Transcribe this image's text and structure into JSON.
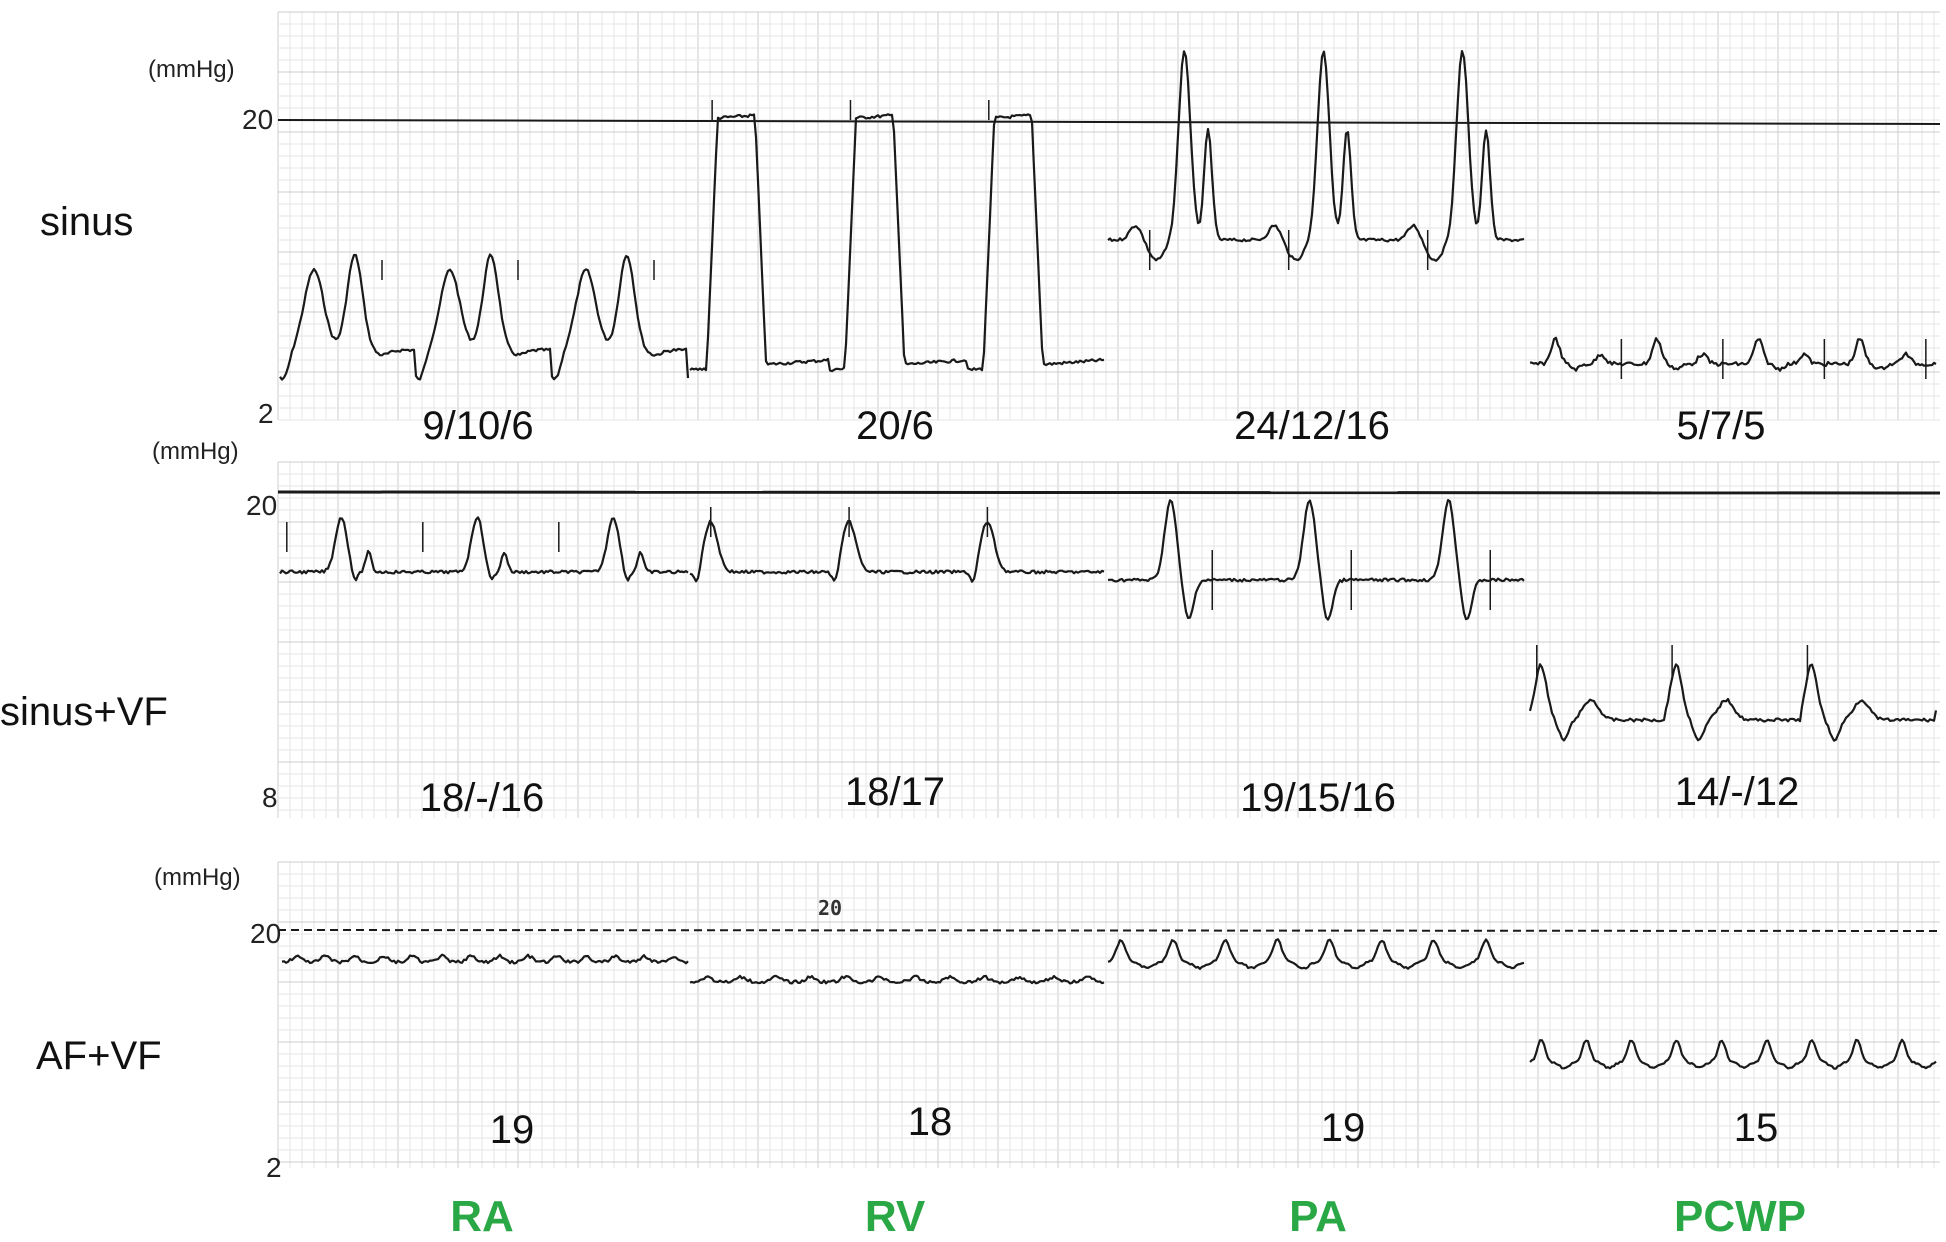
{
  "figure": {
    "colors": {
      "trace": "#1a1a1a",
      "grid_minor": "#e6e6e6",
      "grid_major": "#cccccc",
      "chamber_label": "#2aa845"
    },
    "chambers": [
      "RA",
      "RV",
      "PA",
      "PCWP"
    ]
  },
  "chart_data": [
    {
      "type": "line",
      "row_label": "sinus",
      "unit": "(mmHg)",
      "ytick_top": "20",
      "ytick_bottom": "2",
      "ylim": [
        2,
        20
      ],
      "reference_line": 20,
      "reference_style": "solid",
      "grid": true,
      "panels": [
        {
          "chamber": "RA",
          "value_label": "9/10/6"
        },
        {
          "chamber": "RV",
          "value_label": "20/6"
        },
        {
          "chamber": "PA",
          "value_label": "24/12/16"
        },
        {
          "chamber": "PCWP",
          "value_label": "5/7/5"
        }
      ]
    },
    {
      "type": "line",
      "row_label": "sinus+VF",
      "unit": "(mmHg)",
      "ytick_top": "20",
      "ytick_bottom": "8",
      "ylim": [
        8,
        20
      ],
      "reference_line": 20,
      "reference_style": "solid",
      "grid": true,
      "panels": [
        {
          "chamber": "RA",
          "value_label": "18/-/16"
        },
        {
          "chamber": "RV",
          "value_label": "18/17"
        },
        {
          "chamber": "PA",
          "value_label": "19/15/16"
        },
        {
          "chamber": "PCWP",
          "value_label": "14/-/12"
        }
      ]
    },
    {
      "type": "line",
      "row_label": "AF+VF",
      "unit": "(mmHg)",
      "ytick_top": "20",
      "ytick_bottom": "2",
      "inline_label": "20",
      "ylim": [
        2,
        20
      ],
      "reference_line": 20,
      "reference_style": "dashed",
      "grid": true,
      "panels": [
        {
          "chamber": "RA",
          "value_label": "19"
        },
        {
          "chamber": "RV",
          "value_label": "18"
        },
        {
          "chamber": "PA",
          "value_label": "19"
        },
        {
          "chamber": "PCWP",
          "value_label": "15"
        }
      ]
    }
  ]
}
